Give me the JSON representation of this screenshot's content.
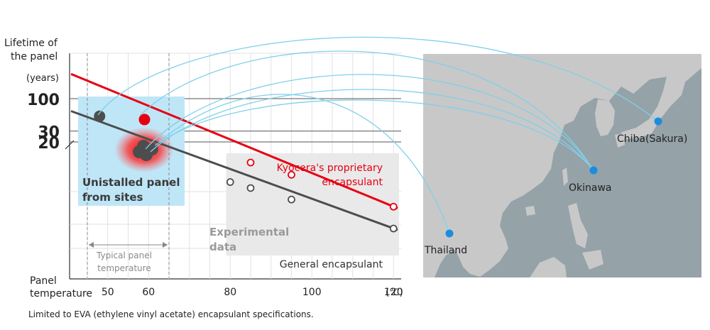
{
  "chart_data": {
    "type": "line",
    "ylabel_lines": [
      "Lifetime of",
      "the panel"
    ],
    "y_unit": "(years)",
    "xlabel_lines": [
      "Panel",
      "temperature"
    ],
    "x_unit": "(℃)",
    "x_ticks": [
      50,
      60,
      80,
      100,
      120
    ],
    "y_ticks": [
      100,
      30,
      20
    ],
    "xlim": [
      41,
      121
    ],
    "series": [
      {
        "name": "Kyocera's proprietary encapsulant",
        "color": "#e60012",
        "label_lines": [
          "Kyocera's proprietary",
          "encapsulant"
        ],
        "line": [
          [
            41,
            250
          ],
          [
            121,
            1.7
          ]
        ],
        "points": [
          [
            85,
            9.3
          ],
          [
            95,
            5.9
          ],
          [
            120,
            1.8
          ]
        ]
      },
      {
        "name": "General encapsulant",
        "color": "#4d4d4d",
        "line": [
          [
            41,
            63
          ],
          [
            121,
            0.76
          ]
        ],
        "points": [
          [
            80,
            4.5
          ],
          [
            85,
            3.6
          ],
          [
            95,
            2.35
          ],
          [
            120,
            0.8
          ]
        ]
      }
    ],
    "field_points": [
      {
        "x": 48,
        "y": 52,
        "color": "#4d4d4d"
      },
      {
        "x": 59,
        "y": 46,
        "color": "#e60012"
      }
    ],
    "typical_range": [
      45,
      65
    ]
  },
  "labels": {
    "field_box_line1": "Unistalled panel",
    "field_box_line2": "from sites",
    "experimental_line1": "Experimental",
    "experimental_line2": "data",
    "typical_line1": "Typical panel",
    "typical_line2": "temperature",
    "footnote": "Limited to EVA (ethylene vinyl acetate) encapsulant specifications."
  },
  "map": {
    "locations": [
      {
        "name": "Chiba(Sakura)"
      },
      {
        "name": "Okinawa"
      },
      {
        "name": "Thailand"
      }
    ],
    "colors": {
      "land": "#c8c8c8",
      "sea": "#95a2a8",
      "marker": "#1a8de0",
      "arc": "#7fd0ea"
    }
  }
}
